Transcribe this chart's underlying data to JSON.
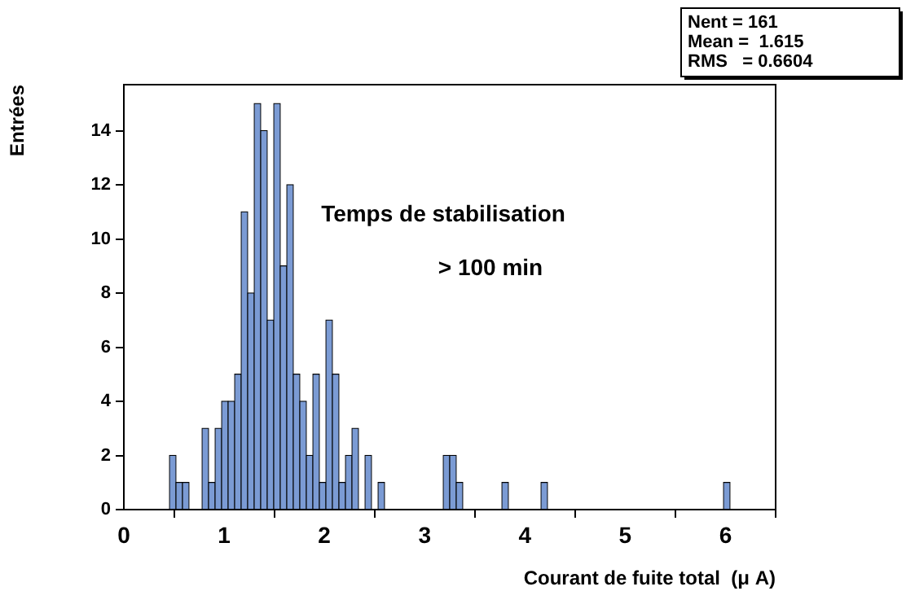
{
  "chart_data": {
    "type": "histogram",
    "xlabel": "Courant de fuite total  (μ A)",
    "ylabel": "Entrées",
    "bins": [
      0,
      0.065,
      0.13,
      0.195,
      0.26,
      0.325,
      0.39,
      0.455,
      0.52,
      0.585,
      0.65,
      0.715,
      0.78,
      0.845,
      0.91,
      0.975,
      1.04,
      1.105,
      1.17,
      1.235,
      1.3,
      1.365,
      1.43,
      1.495,
      1.56,
      1.625,
      1.69,
      1.755,
      1.82,
      1.885,
      1.95,
      2.015,
      2.08,
      2.145,
      2.21,
      2.275,
      2.34,
      2.405,
      2.47,
      2.535,
      2.6,
      2.665,
      2.73,
      2.795,
      2.86,
      2.925,
      2.99,
      3.055,
      3.12,
      3.185,
      3.25,
      3.315,
      3.38,
      3.445,
      3.51,
      3.575,
      3.64,
      3.705,
      3.77,
      3.835,
      3.9,
      3.965,
      4.03,
      4.095,
      4.16,
      4.225,
      4.29,
      4.355,
      4.42,
      4.485,
      4.55,
      4.615,
      4.68,
      4.745,
      4.81,
      4.875,
      4.94,
      5.005,
      5.07,
      5.135,
      5.2,
      5.265,
      5.33,
      5.395,
      5.46,
      5.525,
      5.59,
      5.655,
      5.72,
      5.785,
      5.85,
      5.915,
      5.98,
      6.045,
      6.11,
      6.175,
      6.24,
      6.305,
      6.37,
      6.435,
      6.5
    ],
    "values": [
      0,
      0,
      0,
      0,
      0,
      0,
      0,
      2,
      1,
      1,
      0,
      0,
      3,
      1,
      3,
      4,
      4,
      5,
      11,
      8,
      15,
      14,
      7,
      15,
      9,
      12,
      5,
      4,
      2,
      5,
      1,
      7,
      5,
      1,
      2,
      3,
      0,
      2,
      0,
      1,
      0,
      0,
      0,
      0,
      0,
      0,
      0,
      0,
      0,
      2,
      2,
      1,
      0,
      0,
      0,
      0,
      0,
      0,
      1,
      0,
      0,
      0,
      0,
      0,
      1,
      0,
      0,
      0,
      0,
      0,
      0,
      0,
      0,
      0,
      0,
      0,
      0,
      0,
      0,
      0,
      0,
      0,
      0,
      0,
      0,
      0,
      0,
      0,
      0,
      0,
      0,
      0,
      1,
      0,
      0,
      0,
      0,
      0,
      0,
      0
    ],
    "color": "#7b9bd4",
    "xlim": [
      0,
      6.5
    ],
    "xticks": [
      0,
      1,
      2,
      3,
      4,
      5,
      6
    ],
    "ylim": [
      0,
      15.7
    ],
    "yticks": [
      0,
      2,
      4,
      6,
      8,
      10,
      12,
      14
    ],
    "grid": false,
    "legend": false,
    "annotations": [
      "Temps de stabilisation",
      "> 100 min",
      "Nent = 161",
      "Mean =  1.615",
      "RMS   = 0.6604"
    ]
  }
}
